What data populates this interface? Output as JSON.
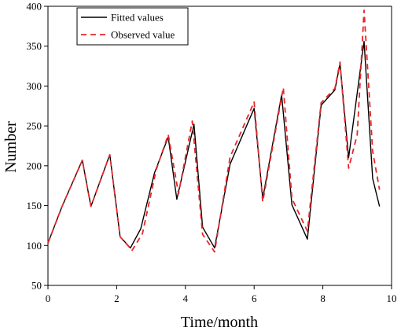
{
  "chart_data": {
    "type": "line",
    "title": "",
    "xlabel": "Time/month",
    "ylabel": "Number",
    "xlim": [
      0,
      10
    ],
    "ylim": [
      50,
      400
    ],
    "xticks": [
      0,
      2,
      4,
      6,
      8,
      10
    ],
    "yticks": [
      50,
      100,
      150,
      200,
      250,
      300,
      350,
      400
    ],
    "grid": false,
    "legend_position": "top-left",
    "series": [
      {
        "name": "Fitted values",
        "color": "#000000",
        "style": "solid",
        "x": [
          0,
          0.4,
          1.0,
          1.25,
          1.8,
          2.1,
          2.4,
          2.7,
          3.1,
          3.5,
          3.75,
          4.25,
          4.5,
          4.85,
          5.3,
          6.0,
          6.25,
          6.8,
          7.1,
          7.55,
          7.95,
          8.35,
          8.5,
          8.75,
          9.2,
          9.45,
          9.65
        ],
        "y": [
          103,
          148,
          207,
          149,
          214,
          111,
          97,
          121,
          191,
          236,
          158,
          252,
          123,
          97,
          202,
          272,
          159,
          289,
          151,
          108,
          276,
          295,
          328,
          210,
          356,
          184,
          149
        ]
      },
      {
        "name": "Observed value",
        "color": "#e8262a",
        "style": "dashed",
        "x": [
          0,
          0.4,
          1.0,
          1.25,
          1.8,
          2.1,
          2.45,
          2.75,
          3.15,
          3.5,
          3.8,
          4.2,
          4.5,
          4.85,
          5.3,
          6.0,
          6.25,
          6.85,
          7.1,
          7.55,
          7.95,
          8.35,
          8.5,
          8.75,
          9.0,
          9.2,
          9.45,
          9.65
        ],
        "y": [
          103,
          148,
          207,
          149,
          214,
          111,
          94,
          115,
          195,
          239,
          165,
          256,
          114,
          92,
          211,
          280,
          155,
          298,
          159,
          118,
          279,
          297,
          330,
          197,
          239,
          395,
          218,
          170
        ]
      }
    ]
  }
}
